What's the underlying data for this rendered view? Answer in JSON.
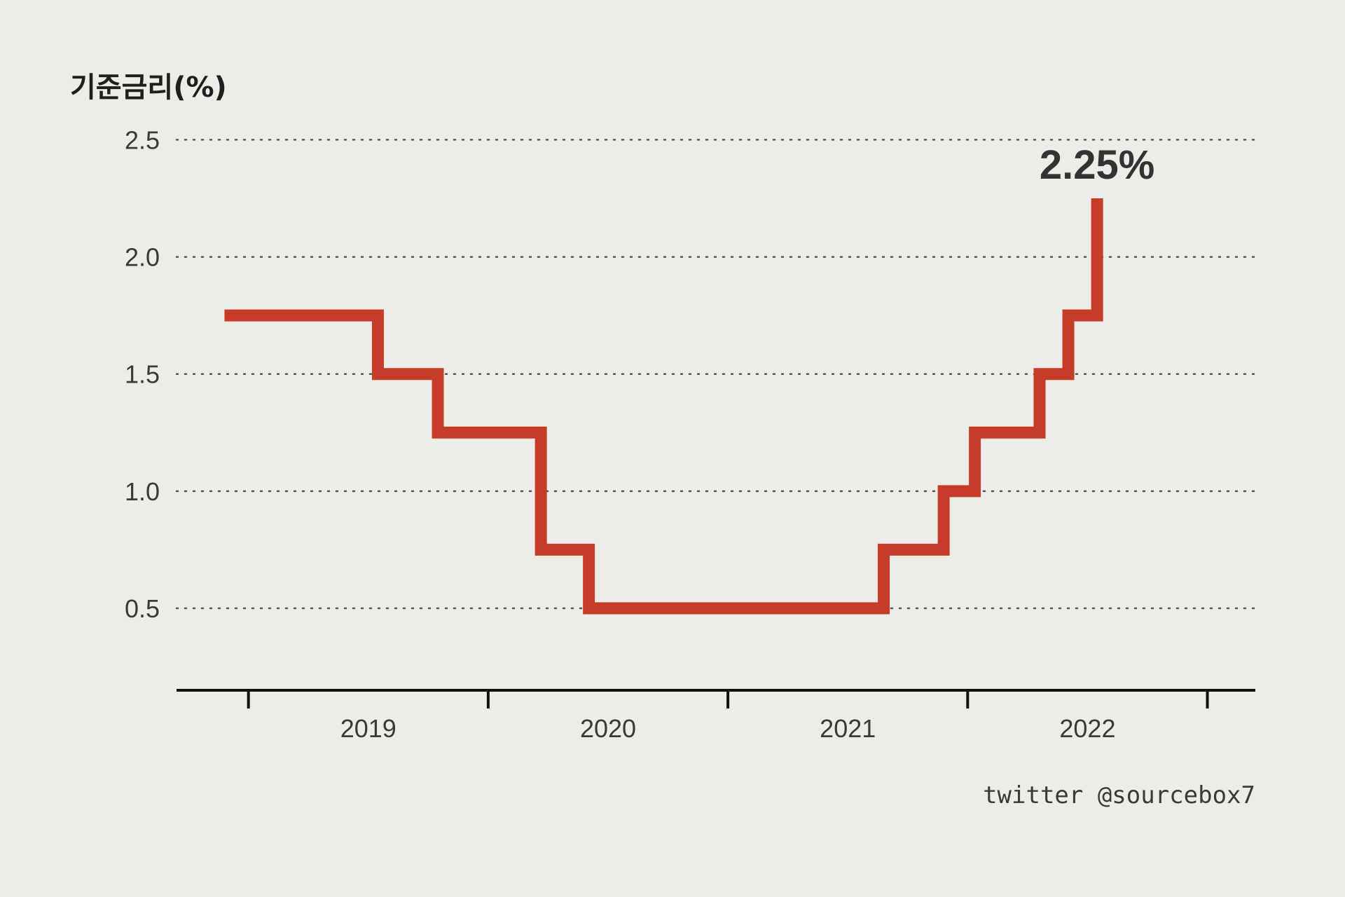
{
  "chart_data": {
    "type": "line",
    "step": true,
    "ylabel": "기준금리(%)",
    "xlabel": "",
    "ylim": [
      0.15,
      2.6
    ],
    "yticks": [
      0.5,
      1.0,
      1.5,
      2.0,
      2.5
    ],
    "ytick_labels": [
      "0.5",
      "1.0",
      "1.5",
      "2.0",
      "2.5"
    ],
    "xlim": [
      2018.7,
      2023.2
    ],
    "xtick_positions": [
      2019.0,
      2020.0,
      2021.0,
      2022.0,
      2023.0
    ],
    "xtick_labels": [
      {
        "label": "2019",
        "at": 2019.5
      },
      {
        "label": "2020",
        "at": 2020.5
      },
      {
        "label": "2021",
        "at": 2021.5
      },
      {
        "label": "2022",
        "at": 2022.5
      }
    ],
    "grid": true,
    "series": [
      {
        "color": "#c63c28",
        "x": [
          2018.9,
          2019.54,
          2019.79,
          2020.22,
          2020.42,
          2021.65,
          2021.9,
          2022.03,
          2022.3,
          2022.42,
          2022.54
        ],
        "values": [
          1.75,
          1.5,
          1.25,
          0.75,
          0.5,
          0.75,
          1.0,
          1.25,
          1.5,
          1.75,
          2.25
        ],
        "end_x": 2022.54
      }
    ],
    "annotations": [
      {
        "text": "2.25%",
        "x": 2022.54,
        "y": 2.25
      }
    ],
    "credit": "twitter @sourcebox7"
  }
}
